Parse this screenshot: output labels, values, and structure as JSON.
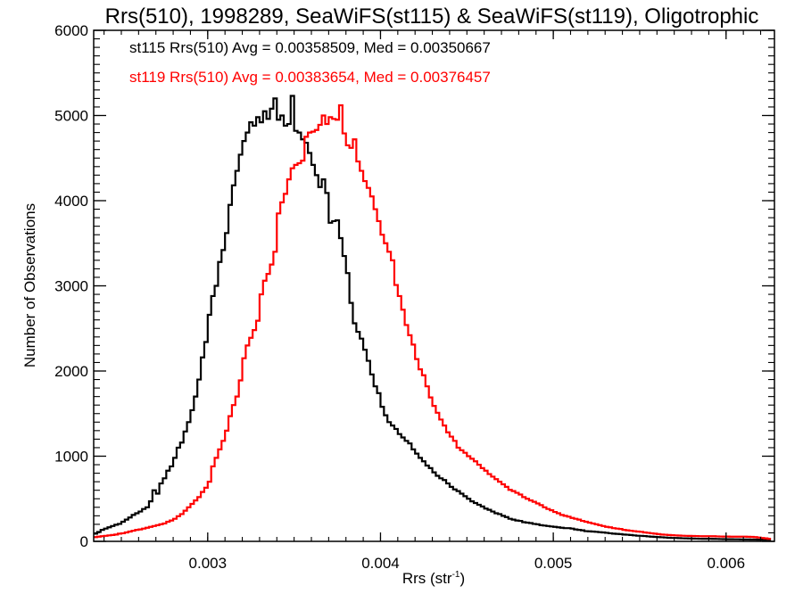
{
  "chart_data": {
    "type": "histogram",
    "title": "Rrs(510), 1998289, SeaWiFS(st115) & SeaWiFS(st119), Oligotrophic",
    "xlabel": "Rrs (str",
    "xlabel_superscript": "-1",
    "xlabel_suffix": ")",
    "ylabel": "Number of Observations",
    "xlim": [
      0.00234,
      0.00628
    ],
    "ylim": [
      0,
      6000
    ],
    "x_ticks": [
      0.003,
      0.004,
      0.005,
      0.006
    ],
    "x_tick_labels": [
      "0.003",
      "0.004",
      "0.005",
      "0.006"
    ],
    "x_minor_step": 0.0001,
    "y_ticks": [
      0,
      1000,
      2000,
      3000,
      4000,
      5000,
      6000
    ],
    "y_tick_labels": [
      "0",
      "1000",
      "2000",
      "3000",
      "4000",
      "5000",
      "6000"
    ],
    "y_minor_step": 100,
    "grid": false,
    "bin_start": 0.00234,
    "bin_width": 2e-05,
    "annotations": [
      {
        "text": "st115 Rrs(510) Avg = 0.00358509, Med = 0.00350667",
        "color": "#000000"
      },
      {
        "text": "st119 Rrs(510) Avg = 0.00383654, Med = 0.00376457",
        "color": "#ff0000"
      }
    ],
    "series": [
      {
        "name": "st115",
        "color": "#000000",
        "avg": 0.00358509,
        "median": 0.00350667,
        "values": [
          90,
          110,
          135,
          150,
          165,
          180,
          195,
          205,
          230,
          255,
          280,
          310,
          330,
          350,
          380,
          400,
          470,
          600,
          560,
          680,
          740,
          830,
          880,
          980,
          1100,
          1160,
          1290,
          1400,
          1540,
          1700,
          1900,
          2160,
          2340,
          2660,
          2880,
          3000,
          3280,
          3420,
          3620,
          3950,
          4180,
          4350,
          4540,
          4700,
          4800,
          4920,
          4880,
          4980,
          4920,
          5050,
          4960,
          5080,
          5200,
          4950,
          5000,
          4880,
          4900,
          5230,
          4820,
          4800,
          4720,
          4680,
          4560,
          4420,
          4300,
          4160,
          4250,
          4090,
          3740,
          3760,
          3770,
          3560,
          3350,
          3150,
          2800,
          2560,
          2460,
          2380,
          2250,
          2120,
          1960,
          1820,
          1740,
          1580,
          1480,
          1400,
          1360,
          1320,
          1260,
          1220,
          1180,
          1150,
          1080,
          1030,
          980,
          940,
          890,
          860,
          810,
          770,
          740,
          720,
          680,
          640,
          610,
          590,
          560,
          530,
          500,
          470,
          450,
          430,
          410,
          385,
          370,
          350,
          330,
          320,
          300,
          285,
          265,
          255,
          245,
          240,
          225,
          220,
          215,
          205,
          200,
          190,
          185,
          180,
          175,
          170,
          165,
          160,
          155,
          155,
          150,
          140,
          135,
          130,
          120,
          118,
          115,
          112,
          108,
          105,
          100,
          95,
          90,
          88,
          85,
          80,
          78,
          75,
          70,
          66,
          65,
          62,
          58,
          55,
          52,
          50,
          48,
          45,
          42,
          40,
          40,
          38,
          36,
          35,
          34,
          33,
          32,
          31,
          30,
          30,
          30,
          29,
          28,
          27,
          26,
          25,
          25,
          24,
          24,
          23,
          22,
          22,
          21,
          21,
          20,
          20,
          20,
          20
        ]
      },
      {
        "name": "st119",
        "color": "#ff0000",
        "avg": 0.00383654,
        "median": 0.00376457,
        "values": [
          50,
          55,
          60,
          65,
          70,
          75,
          80,
          90,
          95,
          105,
          115,
          125,
          135,
          140,
          150,
          160,
          170,
          180,
          190,
          200,
          210,
          230,
          245,
          265,
          295,
          320,
          360,
          400,
          440,
          480,
          520,
          580,
          630,
          700,
          880,
          980,
          1080,
          1180,
          1300,
          1470,
          1600,
          1700,
          1890,
          2150,
          2300,
          2390,
          2480,
          2590,
          2900,
          3060,
          3140,
          3250,
          3400,
          3850,
          3980,
          4080,
          4250,
          4380,
          4420,
          4440,
          4470,
          4750,
          4800,
          4810,
          4830,
          4890,
          5000,
          4900,
          4980,
          4960,
          4950,
          5120,
          4790,
          4650,
          4620,
          4720,
          4460,
          4350,
          4230,
          4150,
          4050,
          3900,
          3760,
          3600,
          3500,
          3400,
          3300,
          3010,
          2880,
          2720,
          2540,
          2420,
          2310,
          2140,
          2020,
          1950,
          1820,
          1690,
          1590,
          1510,
          1430,
          1360,
          1280,
          1230,
          1180,
          1100,
          1070,
          1040,
          1000,
          970,
          940,
          900,
          860,
          830,
          790,
          760,
          730,
          700,
          670,
          640,
          605,
          590,
          570,
          550,
          520,
          500,
          480,
          465,
          445,
          425,
          400,
          380,
          365,
          345,
          330,
          310,
          300,
          290,
          275,
          265,
          255,
          240,
          230,
          220,
          210,
          200,
          190,
          180,
          170,
          165,
          155,
          150,
          145,
          135,
          130,
          125,
          120,
          115,
          112,
          105,
          100,
          95,
          90,
          85,
          80,
          78,
          75,
          72,
          70,
          68,
          66,
          65,
          64,
          63,
          62,
          61,
          60,
          60,
          60,
          60,
          58,
          57,
          56,
          56,
          55,
          55,
          55,
          55,
          55,
          54,
          52,
          50,
          45,
          40,
          35,
          30
        ]
      }
    ]
  }
}
